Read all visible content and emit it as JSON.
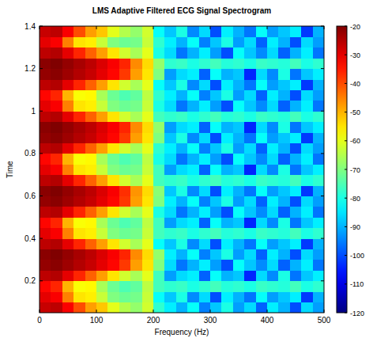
{
  "chart_data": {
    "type": "heatmap",
    "title": "LMS Adaptive Filtered ECG Signal Spectrogram",
    "x_label": "Frequency (Hz)",
    "y_label": "Time",
    "xlim": [
      0,
      500
    ],
    "ylim": [
      0.05,
      1.4
    ],
    "xticks": [
      0,
      100,
      200,
      300,
      400,
      500
    ],
    "yticks": [
      0.2,
      0.4,
      0.6,
      0.8,
      1,
      1.2,
      1.4
    ],
    "grid": false,
    "x_bins": [
      0,
      20,
      40,
      60,
      80,
      100,
      120,
      140,
      160,
      180,
      200,
      220,
      240,
      260,
      280,
      300,
      320,
      340,
      360,
      380,
      400,
      420,
      440,
      460,
      480,
      500
    ],
    "y_bins": [
      0.05,
      0.1,
      0.15,
      0.2,
      0.25,
      0.3,
      0.35,
      0.4,
      0.45,
      0.5,
      0.55,
      0.6,
      0.65,
      0.7,
      0.75,
      0.8,
      0.85,
      0.9,
      0.95,
      1.0,
      1.05,
      1.1,
      1.15,
      1.2,
      1.25,
      1.3,
      1.35,
      1.4
    ],
    "cells": [
      [
        -27,
        -26,
        -32,
        -40,
        -48,
        -52,
        -60,
        -65,
        -68,
        -62,
        -78,
        -84,
        -90,
        -82,
        -95,
        -88,
        -80,
        -92,
        -86,
        -98,
        -84,
        -90,
        -100,
        -86,
        -92
      ],
      [
        -30,
        -32,
        -45,
        -55,
        -56,
        -63,
        -70,
        -72,
        -71,
        -63,
        -82,
        -88,
        -80,
        -94,
        -86,
        -100,
        -84,
        -90,
        -96,
        -82,
        -92,
        -88,
        -84,
        -102,
        -90
      ],
      [
        -33,
        -36,
        -50,
        -58,
        -57,
        -66,
        -72,
        -75,
        -73,
        -64,
        -76,
        -78,
        -77,
        -80,
        -78,
        -76,
        -79,
        -78,
        -80,
        -77,
        -78,
        -79,
        -76,
        -80,
        -78
      ],
      [
        -26,
        -25,
        -30,
        -36,
        -42,
        -48,
        -55,
        -62,
        -66,
        -60,
        -76,
        -92,
        -86,
        -84,
        -98,
        -82,
        -90,
        -88,
        -104,
        -86,
        -94,
        -80,
        -96,
        -88,
        -84
      ],
      [
        -22,
        -21,
        -23,
        -25,
        -27,
        -30,
        -33,
        -38,
        -48,
        -55,
        -70,
        -86,
        -96,
        -90,
        -84,
        -92,
        -100,
        -82,
        -88,
        -94,
        -86,
        -98,
        -90,
        -84,
        -96
      ],
      [
        -21,
        -20,
        -22,
        -24,
        -26,
        -29,
        -32,
        -36,
        -46,
        -54,
        -68,
        -84,
        -90,
        -82,
        -95,
        -88,
        -80,
        -92,
        -86,
        -98,
        -84,
        -90,
        -100,
        -86,
        -92
      ],
      [
        -26,
        -25,
        -30,
        -36,
        -42,
        -48,
        -55,
        -62,
        -66,
        -60,
        -82,
        -88,
        -80,
        -94,
        -86,
        -100,
        -84,
        -90,
        -96,
        -82,
        -92,
        -88,
        -84,
        -102,
        -90
      ],
      [
        -30,
        -32,
        -45,
        -55,
        -56,
        -63,
        -70,
        -72,
        -71,
        -63,
        -76,
        -78,
        -77,
        -80,
        -78,
        -76,
        -79,
        -78,
        -80,
        -77,
        -78,
        -79,
        -76,
        -80,
        -78
      ],
      [
        -33,
        -36,
        -50,
        -58,
        -57,
        -66,
        -72,
        -75,
        -73,
        -64,
        -76,
        -92,
        -86,
        -84,
        -98,
        -82,
        -90,
        -88,
        -104,
        -86,
        -94,
        -80,
        -96,
        -88,
        -84
      ],
      [
        -26,
        -25,
        -30,
        -36,
        -42,
        -48,
        -55,
        -62,
        -66,
        -60,
        -80,
        -86,
        -96,
        -90,
        -84,
        -92,
        -100,
        -82,
        -88,
        -94,
        -86,
        -98,
        -90,
        -84,
        -96
      ],
      [
        -22,
        -21,
        -23,
        -25,
        -27,
        -30,
        -33,
        -38,
        -48,
        -55,
        -70,
        -84,
        -90,
        -82,
        -95,
        -88,
        -80,
        -92,
        -86,
        -98,
        -84,
        -90,
        -100,
        -86,
        -92
      ],
      [
        -21,
        -20,
        -22,
        -24,
        -26,
        -29,
        -32,
        -37,
        -47,
        -54,
        -69,
        -88,
        -80,
        -94,
        -86,
        -100,
        -84,
        -90,
        -96,
        -82,
        -92,
        -88,
        -84,
        -102,
        -90
      ],
      [
        -26,
        -25,
        -30,
        -36,
        -42,
        -48,
        -55,
        -62,
        -66,
        -60,
        -76,
        -78,
        -77,
        -80,
        -78,
        -76,
        -79,
        -78,
        -80,
        -77,
        -78,
        -79,
        -76,
        -80,
        -78
      ],
      [
        -30,
        -32,
        -45,
        -55,
        -56,
        -63,
        -70,
        -72,
        -71,
        -63,
        -76,
        -92,
        -86,
        -84,
        -98,
        -82,
        -90,
        -88,
        -104,
        -86,
        -94,
        -80,
        -96,
        -88,
        -84
      ],
      [
        -33,
        -36,
        -50,
        -58,
        -57,
        -66,
        -72,
        -75,
        -73,
        -64,
        -80,
        -86,
        -96,
        -90,
        -84,
        -92,
        -100,
        -82,
        -88,
        -94,
        -86,
        -98,
        -90,
        -84,
        -96
      ],
      [
        -26,
        -25,
        -30,
        -36,
        -42,
        -48,
        -55,
        -62,
        -66,
        -60,
        -78,
        -84,
        -90,
        -82,
        -95,
        -88,
        -80,
        -92,
        -86,
        -98,
        -84,
        -90,
        -100,
        -86,
        -92
      ],
      [
        -22,
        -21,
        -23,
        -25,
        -27,
        -30,
        -33,
        -38,
        -48,
        -55,
        -70,
        -88,
        -80,
        -94,
        -86,
        -100,
        -84,
        -90,
        -96,
        -82,
        -92,
        -88,
        -84,
        -102,
        -90
      ],
      [
        -21,
        -20,
        -22,
        -24,
        -26,
        -29,
        -32,
        -36,
        -46,
        -54,
        -68,
        -92,
        -86,
        -84,
        -98,
        -82,
        -90,
        -88,
        -104,
        -86,
        -94,
        -80,
        -96,
        -88,
        -84
      ],
      [
        -26,
        -25,
        -30,
        -36,
        -42,
        -48,
        -55,
        -62,
        -66,
        -60,
        -76,
        -78,
        -77,
        -80,
        -78,
        -76,
        -79,
        -78,
        -80,
        -77,
        -78,
        -79,
        -76,
        -80,
        -78
      ],
      [
        -30,
        -32,
        -45,
        -55,
        -56,
        -63,
        -70,
        -72,
        -71,
        -63,
        -80,
        -86,
        -96,
        -90,
        -84,
        -92,
        -100,
        -82,
        -88,
        -94,
        -86,
        -98,
        -90,
        -84,
        -96
      ],
      [
        -33,
        -36,
        -50,
        -58,
        -57,
        -66,
        -72,
        -75,
        -73,
        -64,
        -78,
        -84,
        -90,
        -82,
        -95,
        -88,
        -80,
        -92,
        -86,
        -98,
        -84,
        -90,
        -100,
        -86,
        -92
      ],
      [
        -26,
        -25,
        -30,
        -36,
        -42,
        -48,
        -55,
        -62,
        -66,
        -60,
        -82,
        -88,
        -80,
        -94,
        -86,
        -100,
        -84,
        -90,
        -96,
        -82,
        -92,
        -88,
        -84,
        -102,
        -90
      ],
      [
        -22,
        -21,
        -23,
        -25,
        -27,
        -30,
        -33,
        -38,
        -48,
        -55,
        -70,
        -92,
        -86,
        -84,
        -98,
        -82,
        -90,
        -88,
        -104,
        -86,
        -94,
        -80,
        -96,
        -88,
        -84
      ],
      [
        -21,
        -20,
        -22,
        -24,
        -26,
        -29,
        -32,
        -36,
        -46,
        -54,
        -68,
        -78,
        -77,
        -80,
        -78,
        -76,
        -79,
        -78,
        -80,
        -77,
        -78,
        -79,
        -76,
        -80,
        -78
      ],
      [
        -26,
        -25,
        -30,
        -36,
        -42,
        -48,
        -55,
        -62,
        -66,
        -60,
        -80,
        -86,
        -96,
        -90,
        -84,
        -92,
        -100,
        -82,
        -88,
        -94,
        -86,
        -98,
        -90,
        -84,
        -96
      ],
      [
        -30,
        -32,
        -45,
        -55,
        -56,
        -63,
        -70,
        -72,
        -71,
        -63,
        -78,
        -84,
        -90,
        -82,
        -95,
        -88,
        -80,
        -92,
        -86,
        -98,
        -84,
        -90,
        -100,
        -86,
        -92
      ],
      [
        -27,
        -26,
        -32,
        -40,
        -48,
        -52,
        -60,
        -65,
        -68,
        -62,
        -82,
        -88,
        -80,
        -94,
        -86,
        -100,
        -84,
        -90,
        -96,
        -82,
        -92,
        -88,
        -84,
        -102,
        -90
      ]
    ],
    "colorbar": {
      "range": [
        -120,
        -20
      ],
      "ticks": [
        -20,
        -30,
        -40,
        -50,
        -60,
        -70,
        -80,
        -90,
        -100,
        -110,
        -120
      ]
    }
  }
}
